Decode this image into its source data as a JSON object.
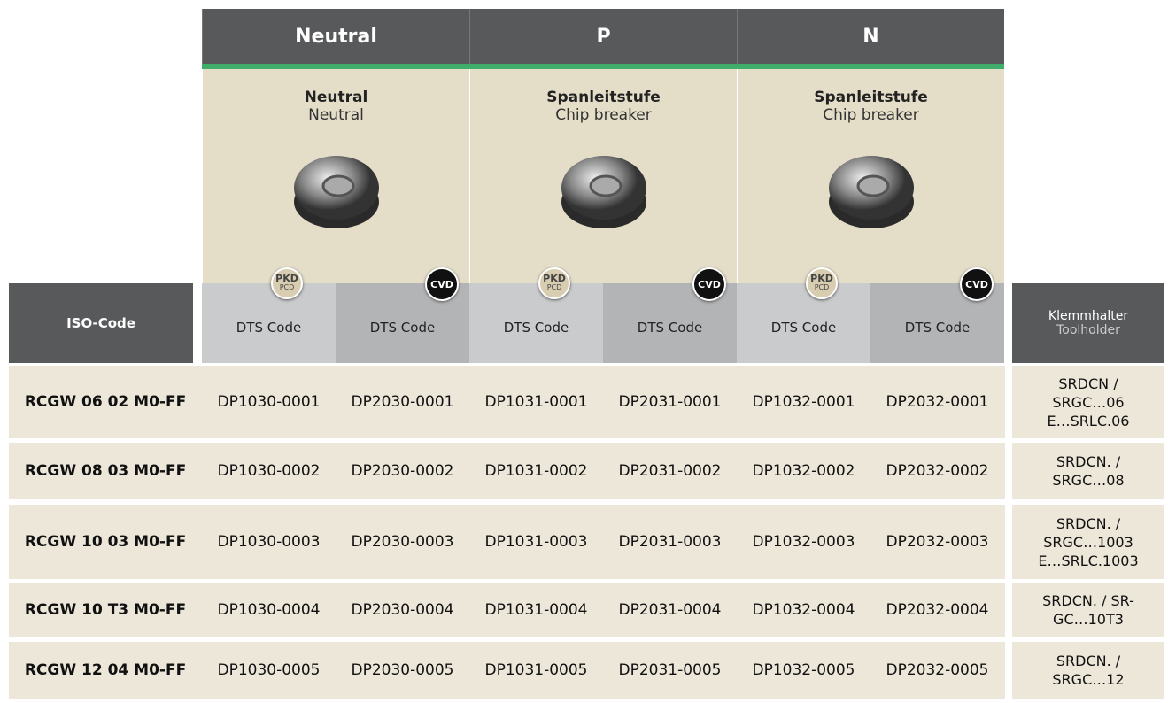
{
  "groups": [
    {
      "title": "Neutral",
      "subtitle_de": "Neutral",
      "subtitle_en": "Neutral"
    },
    {
      "title": "P",
      "subtitle_de": "Spanleitstufe",
      "subtitle_en": "Chip breaker"
    },
    {
      "title": "N",
      "subtitle_de": "Spanleitstufe",
      "subtitle_en": "Chip breaker"
    }
  ],
  "badges": {
    "pkd": "PKD",
    "pcd": "PCD",
    "cvd": "CVD"
  },
  "header": {
    "iso_code": "ISO-Code",
    "dts_codes": [
      "DTS Code",
      "DTS Code",
      "DTS Code",
      "DTS Code",
      "DTS Code",
      "DTS Code"
    ],
    "toolholder_de": "Klemmhalter",
    "toolholder_en": "Toolholder"
  },
  "rows": [
    {
      "iso": "RCGW 06 02 M0-FF",
      "codes": [
        "DP1030-0001",
        "DP2030-0001",
        "DP1031-0001",
        "DP2031-0001",
        "DP1032-0001",
        "DP2032-0001"
      ],
      "toolholder": [
        "SRDCN /",
        "SRGC…06",
        "E…SRLC.06"
      ]
    },
    {
      "iso": "RCGW 08 03 M0-FF",
      "codes": [
        "DP1030-0002",
        "DP2030-0002",
        "DP1031-0002",
        "DP2031-0002",
        "DP1032-0002",
        "DP2032-0002"
      ],
      "toolholder": [
        "SRDCN. /",
        "SRGC…08"
      ]
    },
    {
      "iso": "RCGW 10 03 M0-FF",
      "codes": [
        "DP1030-0003",
        "DP2030-0003",
        "DP1031-0003",
        "DP2031-0003",
        "DP1032-0003",
        "DP2032-0003"
      ],
      "toolholder": [
        "SRDCN. /",
        "SRGC…1003",
        "E…SRLC.1003"
      ]
    },
    {
      "iso": "RCGW 10 T3 M0-FF",
      "codes": [
        "DP1030-0004",
        "DP2030-0004",
        "DP1031-0004",
        "DP2031-0004",
        "DP1032-0004",
        "DP2032-0004"
      ],
      "toolholder": [
        "SRDCN. / SR-",
        "GC…10T3"
      ]
    },
    {
      "iso": "RCGW 12 04 M0-FF",
      "codes": [
        "DP1030-0005",
        "DP2030-0005",
        "DP1031-0005",
        "DP2031-0005",
        "DP1032-0005",
        "DP2032-0005"
      ],
      "toolholder": [
        "SRDCN. /",
        "SRGC…12"
      ]
    }
  ]
}
